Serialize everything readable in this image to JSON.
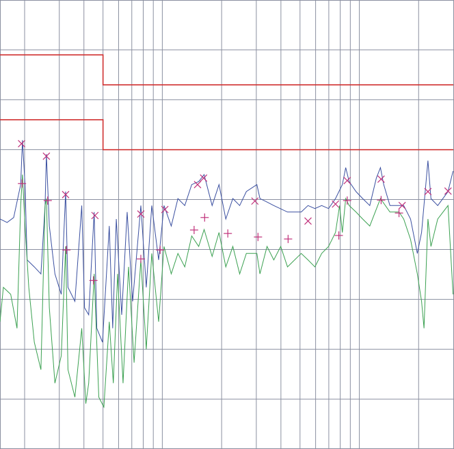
{
  "chart_data": {
    "type": "line",
    "xlim": [
      0.15,
      30
    ],
    "ylim": [
      0,
      90
    ],
    "x_scale": "log",
    "grid": true,
    "grid_color": "#8a8fa0",
    "xticks": [
      0.2,
      0.3,
      0.4,
      0.5,
      0.6,
      0.7,
      0.8,
      0.9,
      1,
      2,
      3,
      4,
      5,
      6,
      7,
      8,
      9,
      10,
      20
    ],
    "yticks": [
      10,
      20,
      30,
      40,
      50,
      60,
      70,
      80
    ],
    "series": [
      {
        "kind": "step",
        "color": "#d03030",
        "x": [
          0.15,
          0.5,
          0.5,
          30
        ],
        "values": [
          79,
          79,
          73,
          73
        ]
      },
      {
        "kind": "step",
        "color": "#d03030",
        "x": [
          0.15,
          0.5,
          0.5,
          30
        ],
        "values": [
          66,
          66,
          60,
          60
        ]
      },
      {
        "kind": "line",
        "color": "#3a4fa0",
        "x": [
          0.15,
          0.163,
          0.176,
          0.191,
          0.195,
          0.201,
          0.206,
          0.224,
          0.242,
          0.254,
          0.258,
          0.267,
          0.285,
          0.307,
          0.323,
          0.332,
          0.36,
          0.39,
          0.403,
          0.423,
          0.451,
          0.465,
          0.497,
          0.538,
          0.56,
          0.584,
          0.622,
          0.663,
          0.707,
          0.778,
          0.829,
          0.884,
          0.958,
          1.02,
          1.11,
          1.2,
          1.3,
          1.41,
          1.53,
          1.63,
          1.79,
          1.94,
          2.1,
          2.28,
          2.47,
          2.67,
          3.02,
          3.13,
          3.4,
          3.68,
          4.32,
          5.07,
          5.49,
          5.95,
          6.44,
          6.98,
          7.57,
          8.2,
          8.53,
          8.88,
          9.62,
          10.4,
          11.3,
          12.2,
          12.8,
          13.3,
          14.3,
          15.9,
          16.8,
          18.2,
          19.7,
          20.7,
          22.3,
          23.1,
          25.0,
          28.2,
          29.9
        ],
        "values": [
          46.1,
          45.4,
          46.4,
          53.0,
          61.9,
          53.0,
          37.9,
          36.5,
          35.1,
          48.8,
          59.1,
          44.7,
          35.1,
          31.0,
          51.6,
          32.4,
          29.6,
          48.8,
          28.3,
          26.9,
          47.5,
          24.2,
          21.4,
          44.7,
          24.2,
          46.1,
          26.9,
          47.5,
          29.6,
          48.8,
          32.4,
          48.8,
          37.9,
          48.8,
          44.7,
          50.2,
          48.8,
          53.0,
          53.6,
          55.0,
          48.8,
          53.0,
          46.1,
          50.2,
          48.8,
          51.6,
          53.0,
          50.2,
          49.5,
          48.8,
          47.5,
          47.5,
          48.8,
          48.2,
          48.8,
          48.2,
          50.2,
          53.0,
          56.4,
          53.6,
          51.6,
          50.2,
          48.8,
          54.3,
          56.4,
          53.0,
          48.8,
          48.8,
          48.8,
          46.1,
          39.2,
          43.4,
          57.8,
          50.2,
          48.8,
          51.6,
          55.7
        ]
      },
      {
        "kind": "line",
        "color": "#3aa050",
        "x": [
          0.15,
          0.156,
          0.17,
          0.183,
          0.191,
          0.195,
          0.201,
          0.21,
          0.224,
          0.242,
          0.254,
          0.258,
          0.267,
          0.285,
          0.307,
          0.323,
          0.332,
          0.36,
          0.39,
          0.409,
          0.423,
          0.451,
          0.476,
          0.505,
          0.538,
          0.564,
          0.593,
          0.632,
          0.674,
          0.719,
          0.778,
          0.829,
          0.884,
          0.958,
          1.02,
          1.11,
          1.2,
          1.3,
          1.41,
          1.53,
          1.63,
          1.79,
          1.94,
          2.1,
          2.28,
          2.47,
          2.67,
          3.02,
          3.13,
          3.4,
          3.68,
          3.99,
          4.32,
          5.07,
          5.49,
          5.95,
          6.44,
          6.98,
          7.57,
          7.94,
          8.2,
          8.53,
          8.88,
          9.62,
          10.4,
          11.3,
          12.8,
          14.3,
          15.9,
          16.8,
          18.2,
          19.7,
          20.7,
          21.3,
          22.3,
          23.1,
          25.0,
          28.2,
          29.9
        ],
        "values": [
          25.5,
          32.4,
          31.0,
          24.2,
          48.8,
          55.0,
          44.7,
          32.4,
          21.4,
          15.9,
          48.8,
          50.2,
          28.3,
          13.2,
          18.7,
          40.6,
          15.9,
          10.4,
          24.2,
          9.1,
          13.2,
          35.1,
          10.4,
          8.4,
          25.5,
          13.2,
          35.1,
          13.2,
          36.5,
          17.3,
          37.9,
          20.0,
          39.2,
          25.5,
          40.6,
          35.1,
          39.2,
          36.5,
          42.7,
          40.6,
          44.0,
          38.6,
          43.4,
          36.5,
          40.6,
          35.1,
          39.2,
          39.2,
          35.1,
          40.6,
          37.9,
          40.6,
          36.5,
          39.2,
          37.9,
          36.5,
          39.2,
          40.6,
          43.4,
          48.8,
          43.4,
          50.2,
          48.8,
          47.5,
          46.1,
          44.7,
          50.2,
          47.5,
          47.5,
          46.1,
          42.0,
          35.1,
          29.6,
          24.2,
          46.1,
          40.6,
          46.1,
          48.8,
          31.0
        ]
      },
      {
        "kind": "marker",
        "marker": "x",
        "color": "#c0307a",
        "x": [
          0.193,
          0.258,
          0.323,
          0.455,
          0.778,
          1.03,
          1.51,
          1.62,
          2.95,
          5.49,
          7.57,
          8.68,
          12.9,
          16.5,
          22.3,
          28.2
        ],
        "values": [
          61.2,
          58.7,
          51.0,
          46.8,
          47.1,
          48.0,
          53.0,
          54.3,
          49.7,
          45.7,
          49.1,
          53.8,
          54.1,
          48.8,
          51.6,
          51.7
        ]
      },
      {
        "kind": "marker",
        "marker": "+",
        "color": "#c0307a",
        "x": [
          0.194,
          0.262,
          0.326,
          0.447,
          0.778,
          0.975,
          1.45,
          1.64,
          2.15,
          3.06,
          4.35,
          7.87,
          8.68,
          12.9,
          15.9
        ],
        "values": [
          53.2,
          49.8,
          39.9,
          33.8,
          38.1,
          39.9,
          43.9,
          46.4,
          43.2,
          42.5,
          42.1,
          42.8,
          49.8,
          49.9,
          47.3
        ]
      }
    ]
  }
}
